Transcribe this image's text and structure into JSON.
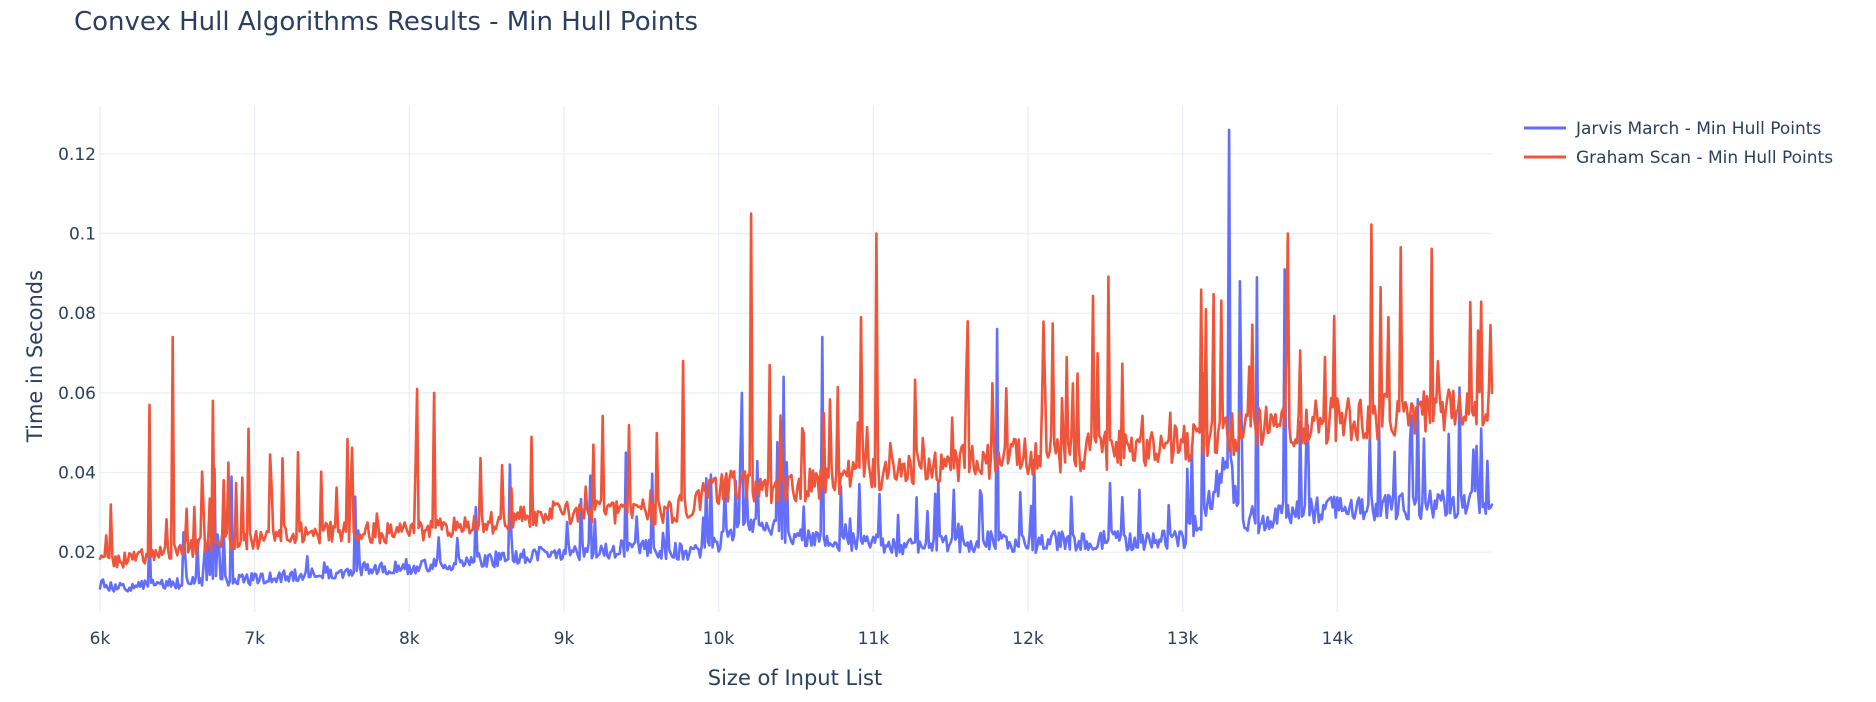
{
  "chart_data": {
    "type": "line",
    "title": "Convex Hull Algorithms Results - Min Hull Points",
    "xlabel": "Size of Input List",
    "ylabel": "Time in Seconds",
    "xlim": [
      6000,
      15000
    ],
    "ylim": [
      0.005,
      0.132
    ],
    "grid": true,
    "legend_position": "top-right",
    "x_ticks": [
      6000,
      7000,
      8000,
      9000,
      10000,
      11000,
      12000,
      13000,
      14000
    ],
    "x_tick_labels": [
      "6k",
      "7k",
      "8k",
      "9k",
      "10k",
      "11k",
      "12k",
      "13k",
      "14k"
    ],
    "y_ticks": [
      0.02,
      0.04,
      0.06,
      0.08,
      0.1,
      0.12
    ],
    "y_tick_labels": [
      "0.02",
      "0.04",
      "0.06",
      "0.08",
      "0.1",
      "0.12"
    ],
    "series": [
      {
        "name": "Jarvis March - Min Hull Points",
        "color": "#636efa",
        "x": [
          6000,
          6150,
          6300,
          6450,
          6700,
          6900,
          7200,
          7500,
          7800,
          8000,
          8500,
          9000,
          9500,
          9800,
          10000,
          10150,
          10300,
          10500,
          10700,
          10800,
          11000,
          11200,
          11400,
          11600,
          11800,
          11850,
          12000,
          12200,
          12500,
          12800,
          13000,
          13150,
          13250,
          13300,
          13350,
          13400,
          13450,
          13500,
          13600,
          13700,
          14000,
          14300,
          14600,
          14800,
          15000
        ],
        "values": [
          0.012,
          0.011,
          0.012,
          0.012,
          0.013,
          0.013,
          0.014,
          0.015,
          0.016,
          0.016,
          0.018,
          0.02,
          0.021,
          0.02,
          0.022,
          0.027,
          0.026,
          0.024,
          0.023,
          0.022,
          0.023,
          0.021,
          0.022,
          0.022,
          0.023,
          0.022,
          0.022,
          0.023,
          0.023,
          0.023,
          0.023,
          0.03,
          0.04,
          0.045,
          0.03,
          0.028,
          0.027,
          0.028,
          0.029,
          0.03,
          0.031,
          0.031,
          0.032,
          0.032,
          0.033
        ],
        "spikes": [
          {
            "x": 6320,
            "value": 0.025
          },
          {
            "x": 6540,
            "value": 0.025
          },
          {
            "x": 6740,
            "value": 0.041
          },
          {
            "x": 6850,
            "value": 0.039
          },
          {
            "x": 7650,
            "value": 0.034
          },
          {
            "x": 8650,
            "value": 0.042
          },
          {
            "x": 9400,
            "value": 0.045
          },
          {
            "x": 10150,
            "value": 0.06
          },
          {
            "x": 10420,
            "value": 0.064
          },
          {
            "x": 10670,
            "value": 0.074
          },
          {
            "x": 11800,
            "value": 0.076
          },
          {
            "x": 13130,
            "value": 0.065
          },
          {
            "x": 13300,
            "value": 0.126
          },
          {
            "x": 13370,
            "value": 0.088
          },
          {
            "x": 13480,
            "value": 0.089
          },
          {
            "x": 13660,
            "value": 0.091
          },
          {
            "x": 14930,
            "value": 0.051
          }
        ]
      },
      {
        "name": "Graham Scan - Min Hull Points",
        "color": "#ef553b",
        "x": [
          6000,
          6150,
          6300,
          6450,
          6700,
          7000,
          7300,
          7600,
          8000,
          8500,
          9000,
          9500,
          9700,
          9900,
          10100,
          10300,
          10500,
          10700,
          10900,
          11100,
          11400,
          11700,
          12000,
          12300,
          12600,
          12900,
          13200,
          13500,
          13700,
          14000,
          14300,
          14600,
          14900,
          15000
        ],
        "values": [
          0.019,
          0.018,
          0.019,
          0.02,
          0.022,
          0.023,
          0.025,
          0.025,
          0.025,
          0.027,
          0.03,
          0.03,
          0.03,
          0.034,
          0.037,
          0.035,
          0.036,
          0.038,
          0.04,
          0.04,
          0.042,
          0.043,
          0.044,
          0.045,
          0.046,
          0.047,
          0.049,
          0.051,
          0.052,
          0.053,
          0.054,
          0.055,
          0.055,
          0.057
        ],
        "spikes": [
          {
            "x": 6070,
            "value": 0.032
          },
          {
            "x": 6320,
            "value": 0.057
          },
          {
            "x": 6470,
            "value": 0.074
          },
          {
            "x": 6730,
            "value": 0.058
          },
          {
            "x": 6960,
            "value": 0.051
          },
          {
            "x": 8050,
            "value": 0.061
          },
          {
            "x": 8160,
            "value": 0.06
          },
          {
            "x": 9190,
            "value": 0.047
          },
          {
            "x": 9770,
            "value": 0.068
          },
          {
            "x": 10210,
            "value": 0.105
          },
          {
            "x": 10330,
            "value": 0.067
          },
          {
            "x": 10920,
            "value": 0.079
          },
          {
            "x": 11020,
            "value": 0.1
          },
          {
            "x": 11600,
            "value": 0.063
          },
          {
            "x": 12250,
            "value": 0.069
          },
          {
            "x": 13680,
            "value": 0.1
          },
          {
            "x": 13920,
            "value": 0.069
          },
          {
            "x": 14650,
            "value": 0.068
          },
          {
            "x": 14995,
            "value": 0.077
          }
        ]
      }
    ]
  }
}
